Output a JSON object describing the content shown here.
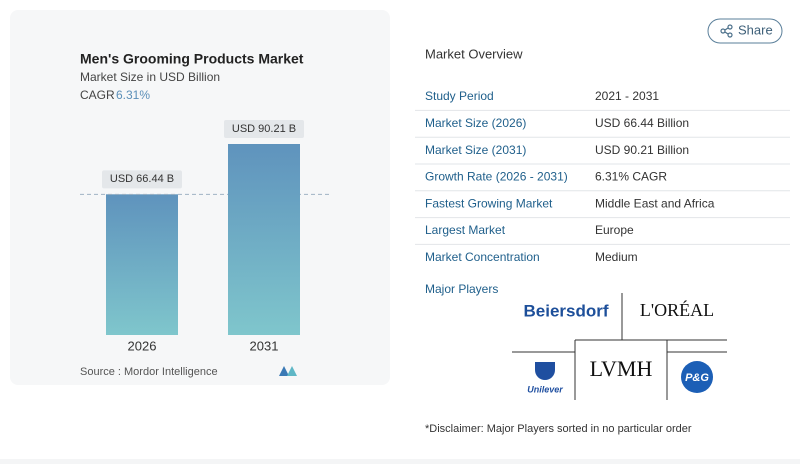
{
  "chart_data": {
    "type": "bar",
    "title": "Men's Grooming Products Market",
    "subtitle": "Market Size in USD Billion",
    "cagr_label": "CAGR",
    "cagr": "6.31%",
    "categories": [
      "2026",
      "2031"
    ],
    "values": [
      66.44,
      90.21
    ],
    "value_labels": [
      "USD 66.44 B",
      "USD 90.21 B"
    ],
    "color": "#6aa3c4",
    "source": "Source :  Mordor Intelligence"
  },
  "share": "Share",
  "overview": {
    "title": "Market Overview",
    "rows": [
      [
        "Study Period",
        "2021 - 2031"
      ],
      [
        "Market Size (2026)",
        "USD 66.44 Billion"
      ],
      [
        "Market Size (2031)",
        "USD 90.21 Billion"
      ],
      [
        "Growth Rate (2026 - 2031)",
        "6.31% CAGR"
      ],
      [
        "Fastest Growing Market",
        "Middle East and Africa"
      ],
      [
        "Largest Market",
        "Europe"
      ],
      [
        "Market Concentration",
        "Medium"
      ]
    ]
  },
  "players": {
    "title": "Major Players",
    "names": [
      "Beiersdorf",
      "L'ORÉAL",
      "Unilever",
      "LVMH",
      "P&G"
    ]
  },
  "disclaimer": "*Disclaimer: Major Players sorted in no particular order"
}
